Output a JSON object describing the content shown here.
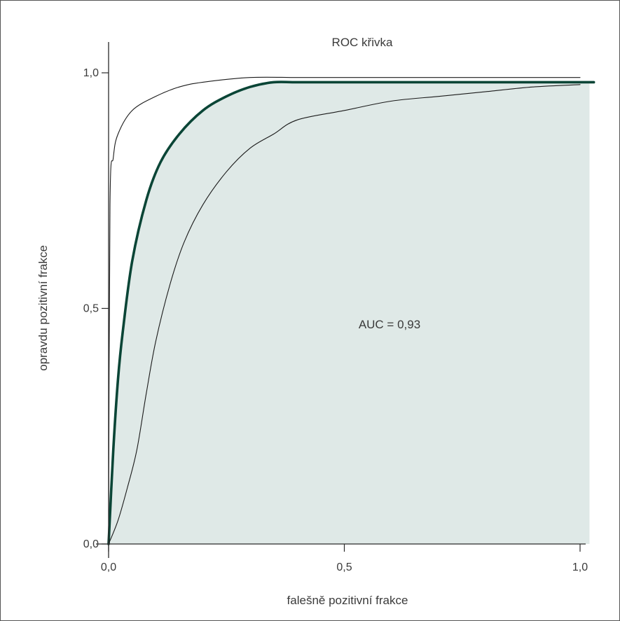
{
  "chart_data": {
    "type": "line",
    "title": "ROC křivka",
    "xlabel": "falešně pozitivní frakce",
    "ylabel": "opravdu pozitivní frakce",
    "xlim": [
      0,
      1.0
    ],
    "ylim": [
      0,
      1.0
    ],
    "x_ticks": [
      "0,0",
      "0,5",
      "1,0"
    ],
    "y_ticks": [
      "0,0",
      "0,5",
      "1,0"
    ],
    "grid": false,
    "annotation": "AUC = 0,93",
    "shaded_area_under": "main",
    "series": [
      {
        "id": "upper",
        "style": "thin",
        "x": [
          0,
          0.003,
          0.01,
          0.02,
          0.05,
          0.1,
          0.15,
          0.2,
          0.3,
          0.4,
          0.5,
          0.7,
          1.0
        ],
        "y": [
          0,
          0.72,
          0.82,
          0.87,
          0.92,
          0.95,
          0.97,
          0.98,
          0.99,
          0.99,
          0.99,
          0.99,
          0.99
        ]
      },
      {
        "id": "main",
        "style": "thick",
        "x": [
          0,
          0.01,
          0.02,
          0.03,
          0.05,
          0.08,
          0.11,
          0.15,
          0.2,
          0.25,
          0.3,
          0.35,
          0.4,
          0.5,
          0.7,
          1.0,
          1.02
        ],
        "y": [
          0,
          0.2,
          0.35,
          0.45,
          0.6,
          0.73,
          0.81,
          0.87,
          0.92,
          0.95,
          0.97,
          0.98,
          0.98,
          0.98,
          0.98,
          0.98,
          0.98
        ]
      },
      {
        "id": "lower",
        "style": "thin",
        "x": [
          0,
          0.02,
          0.04,
          0.06,
          0.08,
          0.1,
          0.13,
          0.16,
          0.2,
          0.25,
          0.3,
          0.35,
          0.4,
          0.5,
          0.6,
          0.7,
          0.8,
          0.9,
          1.0
        ],
        "y": [
          0,
          0.05,
          0.12,
          0.2,
          0.32,
          0.43,
          0.55,
          0.64,
          0.72,
          0.79,
          0.84,
          0.87,
          0.9,
          0.92,
          0.94,
          0.95,
          0.96,
          0.97,
          0.975
        ]
      }
    ],
    "colors": {
      "main_line": "#0a4536",
      "thin_line": "#1a1a1a",
      "fill": "#dfe9e7",
      "axis": "#2a2a2a",
      "text": "#3a3a3a"
    }
  }
}
